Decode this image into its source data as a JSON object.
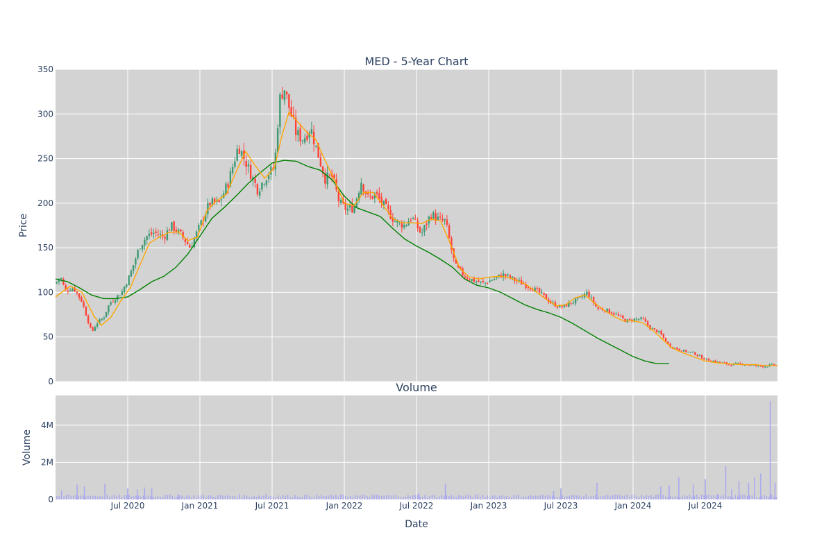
{
  "chart_data": [
    {
      "type": "candlestick",
      "title": "MED - 5-Year Chart",
      "ylabel": "Price",
      "ylim": [
        0,
        350
      ],
      "yticks": [
        "0",
        "50",
        "100",
        "150",
        "200",
        "250",
        "300",
        "350"
      ],
      "xticks": [
        "Jul 2020",
        "Jan 2021",
        "Jul 2021",
        "Jan 2022",
        "Jul 2022",
        "Jan 2023",
        "Jul 2023",
        "Jan 2024",
        "Jul 2024"
      ],
      "grid": true,
      "colors": {
        "background": "#d3d3d3",
        "up": "#3d9970",
        "down": "#ff4136",
        "ma_short": "#ffa500",
        "ma_long": "#008000",
        "grid": "#ffffff",
        "volume": "#aaaaee"
      },
      "price_close": [
        [
          0,
          110
        ],
        [
          0.4,
          118
        ],
        [
          0.8,
          102
        ],
        [
          1.5,
          105
        ],
        [
          2.2,
          90
        ],
        [
          3.0,
          55
        ],
        [
          3.4,
          65
        ],
        [
          4.0,
          72
        ],
        [
          4.5,
          88
        ],
        [
          5.5,
          100
        ],
        [
          6.2,
          120
        ],
        [
          7.0,
          152
        ],
        [
          7.6,
          163
        ],
        [
          8.2,
          167
        ],
        [
          9.0,
          162
        ],
        [
          9.6,
          175
        ],
        [
          10.4,
          165
        ],
        [
          11.2,
          150
        ],
        [
          12.0,
          175
        ],
        [
          12.8,
          200
        ],
        [
          13.6,
          200
        ],
        [
          14.4,
          225
        ],
        [
          15.2,
          265
        ],
        [
          16.0,
          240
        ],
        [
          16.8,
          215
        ],
        [
          17.6,
          232
        ],
        [
          18.2,
          240
        ],
        [
          18.6,
          315
        ],
        [
          19.0,
          330
        ],
        [
          19.4,
          308
        ],
        [
          20.0,
          278
        ],
        [
          20.6,
          272
        ],
        [
          21.2,
          285
        ],
        [
          21.6,
          265
        ],
        [
          22.4,
          228
        ],
        [
          23.0,
          230
        ],
        [
          23.6,
          200
        ],
        [
          24.2,
          193
        ],
        [
          24.8,
          195
        ],
        [
          25.4,
          225
        ],
        [
          26.0,
          205
        ],
        [
          26.6,
          210
        ],
        [
          27.4,
          195
        ],
        [
          28.2,
          180
        ],
        [
          29.0,
          175
        ],
        [
          29.6,
          185
        ],
        [
          30.4,
          165
        ],
        [
          31.2,
          188
        ],
        [
          32.0,
          180
        ],
        [
          32.4,
          180
        ],
        [
          33.2,
          130
        ],
        [
          34.0,
          118
        ],
        [
          34.8,
          113
        ],
        [
          35.6,
          110
        ],
        [
          36.4,
          115
        ],
        [
          37.2,
          120
        ],
        [
          38.0,
          115
        ],
        [
          38.8,
          110
        ],
        [
          39.6,
          105
        ],
        [
          40.4,
          98
        ],
        [
          41.2,
          88
        ],
        [
          42.0,
          83
        ],
        [
          42.8,
          88
        ],
        [
          43.6,
          93
        ],
        [
          44.2,
          100
        ],
        [
          45.0,
          82
        ],
        [
          45.8,
          80
        ],
        [
          46.6,
          75
        ],
        [
          47.4,
          68
        ],
        [
          48.2,
          70
        ],
        [
          48.8,
          70
        ],
        [
          49.4,
          60
        ],
        [
          50.2,
          55
        ],
        [
          51.0,
          40
        ],
        [
          52.0,
          35
        ],
        [
          53.0,
          32
        ],
        [
          54.0,
          25
        ],
        [
          55.0,
          22
        ],
        [
          56.0,
          19
        ],
        [
          57.0,
          20
        ],
        [
          58.0,
          18
        ],
        [
          59.0,
          17
        ],
        [
          59.6,
          19
        ],
        [
          60.0,
          17
        ]
      ],
      "ma_short": [
        [
          0,
          95
        ],
        [
          1.2,
          107
        ],
        [
          2.2,
          100
        ],
        [
          3.2,
          73
        ],
        [
          3.8,
          63
        ],
        [
          4.6,
          72
        ],
        [
          5.4,
          90
        ],
        [
          6.2,
          105
        ],
        [
          7.0,
          130
        ],
        [
          7.8,
          155
        ],
        [
          8.6,
          162
        ],
        [
          9.4,
          167
        ],
        [
          10.2,
          168
        ],
        [
          11.0,
          158
        ],
        [
          11.8,
          162
        ],
        [
          12.6,
          192
        ],
        [
          13.4,
          203
        ],
        [
          14.2,
          210
        ],
        [
          15.0,
          235
        ],
        [
          15.8,
          258
        ],
        [
          16.6,
          242
        ],
        [
          17.4,
          228
        ],
        [
          18.2,
          240
        ],
        [
          18.8,
          275
        ],
        [
          19.4,
          302
        ],
        [
          20.2,
          290
        ],
        [
          21.0,
          278
        ],
        [
          21.6,
          272
        ],
        [
          22.4,
          248
        ],
        [
          23.2,
          225
        ],
        [
          24.0,
          200
        ],
        [
          24.8,
          197
        ],
        [
          25.6,
          212
        ],
        [
          26.4,
          212
        ],
        [
          27.2,
          198
        ],
        [
          28.0,
          183
        ],
        [
          28.8,
          178
        ],
        [
          29.6,
          178
        ],
        [
          30.4,
          177
        ],
        [
          31.2,
          182
        ],
        [
          32.0,
          180
        ],
        [
          32.8,
          155
        ],
        [
          33.6,
          127
        ],
        [
          34.4,
          117
        ],
        [
          35.2,
          115
        ],
        [
          36.0,
          117
        ],
        [
          36.8,
          118
        ],
        [
          37.6,
          117
        ],
        [
          38.4,
          113
        ],
        [
          39.2,
          108
        ],
        [
          40.0,
          100
        ],
        [
          40.8,
          92
        ],
        [
          41.6,
          85
        ],
        [
          42.4,
          86
        ],
        [
          43.2,
          94
        ],
        [
          44.0,
          97
        ],
        [
          44.8,
          88
        ],
        [
          45.6,
          80
        ],
        [
          46.4,
          73
        ],
        [
          47.2,
          68
        ],
        [
          48.0,
          68
        ],
        [
          48.8,
          66
        ],
        [
          49.6,
          58
        ],
        [
          50.4,
          48
        ],
        [
          51.2,
          38
        ],
        [
          52.0,
          33
        ],
        [
          53.0,
          28
        ],
        [
          54.0,
          23
        ],
        [
          55.0,
          21
        ],
        [
          56.0,
          20
        ],
        [
          57.0,
          19
        ],
        [
          58.0,
          19
        ],
        [
          59.0,
          18
        ],
        [
          60.0,
          18
        ]
      ],
      "ma_long": [
        [
          0,
          115
        ],
        [
          1.0,
          112
        ],
        [
          2.0,
          105
        ],
        [
          3.0,
          97
        ],
        [
          4.0,
          93
        ],
        [
          5.0,
          93
        ],
        [
          6.0,
          95
        ],
        [
          7.0,
          103
        ],
        [
          8.0,
          112
        ],
        [
          9.0,
          118
        ],
        [
          10.0,
          128
        ],
        [
          11.0,
          143
        ],
        [
          12.0,
          163
        ],
        [
          13.0,
          183
        ],
        [
          14.0,
          195
        ],
        [
          15.0,
          208
        ],
        [
          16.0,
          222
        ],
        [
          17.0,
          234
        ],
        [
          18.0,
          245
        ],
        [
          19.0,
          248
        ],
        [
          20.0,
          247
        ],
        [
          21.0,
          241
        ],
        [
          22.0,
          237
        ],
        [
          23.0,
          226
        ],
        [
          24.0,
          208
        ],
        [
          25.0,
          195
        ],
        [
          26.0,
          190
        ],
        [
          27.0,
          185
        ],
        [
          28.0,
          172
        ],
        [
          29.0,
          160
        ],
        [
          30.0,
          152
        ],
        [
          31.0,
          145
        ],
        [
          32.0,
          137
        ],
        [
          33.0,
          128
        ],
        [
          34.0,
          115
        ],
        [
          35.0,
          108
        ],
        [
          36.0,
          105
        ],
        [
          37.0,
          100
        ],
        [
          38.0,
          93
        ],
        [
          39.0,
          86
        ],
        [
          40.0,
          81
        ],
        [
          41.0,
          77
        ],
        [
          42.0,
          72
        ],
        [
          43.0,
          65
        ],
        [
          44.0,
          57
        ],
        [
          45.0,
          49
        ],
        [
          46.0,
          42
        ],
        [
          47.0,
          35
        ],
        [
          48.0,
          28
        ],
        [
          49.0,
          23
        ],
        [
          50.0,
          20
        ],
        [
          51.0,
          20
        ]
      ]
    },
    {
      "type": "bar",
      "title": "Volume",
      "ylabel": "Volume",
      "xlabel": "Date",
      "yticks": [
        "0",
        "2M",
        "4M"
      ],
      "xticks": [
        "Jul 2020",
        "Jan 2021",
        "Jul 2021",
        "Jan 2022",
        "Jul 2022",
        "Jan 2023",
        "Jul 2023",
        "Jan 2024",
        "Jul 2024"
      ],
      "baseline_volume_m": 0.2,
      "spikes_m": [
        [
          0.5,
          0.5
        ],
        [
          1.8,
          0.8
        ],
        [
          2.4,
          0.7
        ],
        [
          4.1,
          0.85
        ],
        [
          6.0,
          0.6
        ],
        [
          6.8,
          0.55
        ],
        [
          7.4,
          0.65
        ],
        [
          8.0,
          0.6
        ],
        [
          10.2,
          0.3
        ],
        [
          17.5,
          0.3
        ],
        [
          30.2,
          0.35
        ],
        [
          32.4,
          0.85
        ],
        [
          41.4,
          0.45
        ],
        [
          42.0,
          0.6
        ],
        [
          45.0,
          0.9
        ],
        [
          50.3,
          0.7
        ],
        [
          51.0,
          0.75
        ],
        [
          51.8,
          1.2
        ],
        [
          53.0,
          0.8
        ],
        [
          54.0,
          1.1
        ],
        [
          55.0,
          0.3
        ],
        [
          55.7,
          1.8
        ],
        [
          56.2,
          0.55
        ],
        [
          56.8,
          1.0
        ],
        [
          57.6,
          0.9
        ],
        [
          58.1,
          1.2
        ],
        [
          58.6,
          1.4
        ],
        [
          59.4,
          5.3
        ],
        [
          59.8,
          0.9
        ]
      ]
    }
  ]
}
